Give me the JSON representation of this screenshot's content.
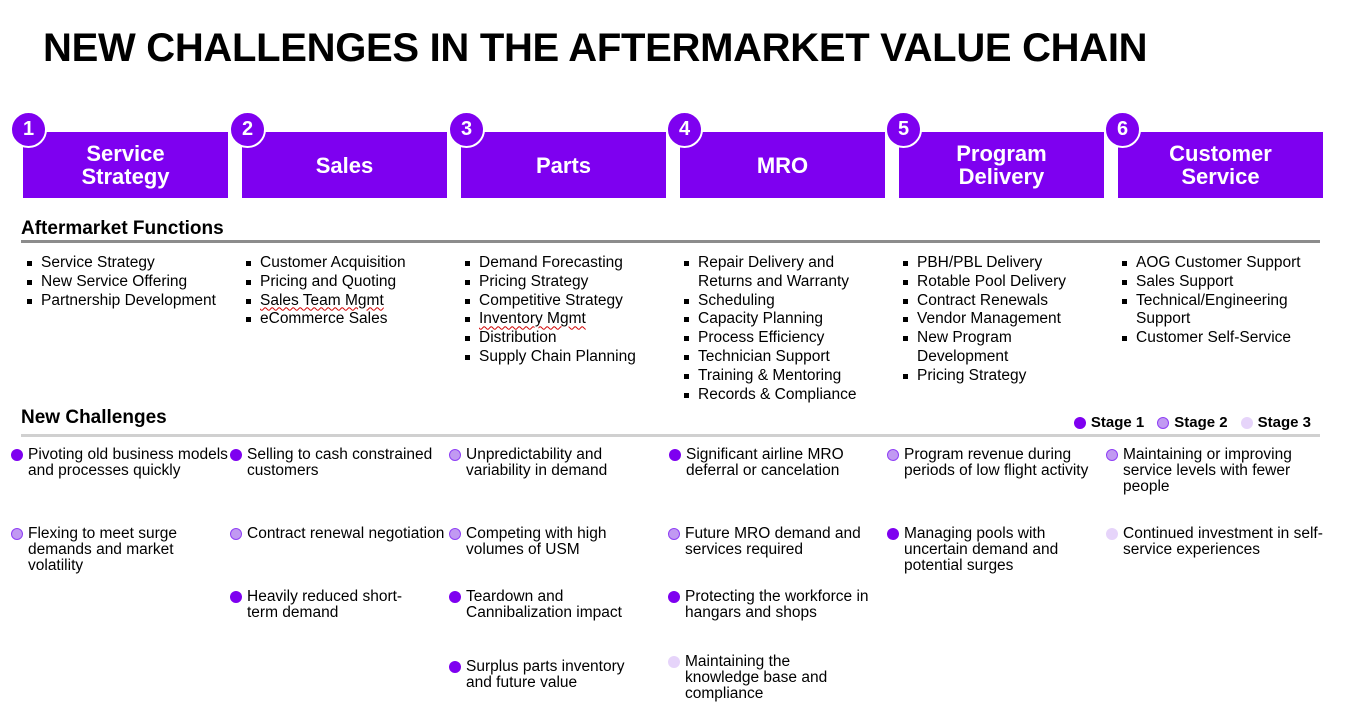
{
  "title": "NEW CHALLENGES IN THE AFTERMARKET VALUE CHAIN",
  "stages": [
    {
      "num": "1",
      "label": "Service\nStrategy"
    },
    {
      "num": "2",
      "label": "Sales"
    },
    {
      "num": "3",
      "label": "Parts"
    },
    {
      "num": "4",
      "label": "MRO"
    },
    {
      "num": "5",
      "label": "Program\nDelivery"
    },
    {
      "num": "6",
      "label": "Customer\nService"
    }
  ],
  "functions_heading": "Aftermarket Functions",
  "functions": [
    [
      "Service Strategy",
      "New Service Offering",
      "Partnership Development"
    ],
    [
      "Customer Acquisition",
      "Pricing and Quoting",
      "Sales Team Mgmt",
      "eCommerce Sales"
    ],
    [
      "Demand Forecasting",
      "Pricing Strategy",
      "Competitive Strategy",
      "Inventory Mgmt",
      "Distribution",
      "Supply Chain Planning"
    ],
    [
      "Repair Delivery and Returns and Warranty",
      "Scheduling",
      "Capacity Planning",
      "Process Efficiency",
      "Technician Support",
      "Training & Mentoring",
      "Records & Compliance"
    ],
    [
      "PBH/PBL Delivery",
      "Rotable Pool Delivery",
      "Contract Renewals",
      "Vendor Management",
      "New Program Development",
      "Pricing Strategy"
    ],
    [
      "AOG Customer Support",
      "Sales Support",
      "Technical/Engineering Support",
      "Customer Self-Service"
    ]
  ],
  "challenges_heading": "New Challenges",
  "legend": {
    "stage1": "Stage 1",
    "stage2": "Stage 2",
    "stage3": "Stage 3"
  },
  "colors": {
    "stage1": "#7e00f0",
    "stage2": "#c199f2",
    "stage3": "#e6d4fa",
    "accent": "#7e00f0"
  },
  "challenges": [
    [
      {
        "text": "Pivoting old business models and processes quickly",
        "stage": 1
      },
      {
        "text": "Flexing to meet surge demands and market volatility",
        "stage": 2
      }
    ],
    [
      {
        "text": "Selling to cash constrained customers",
        "stage": 1
      },
      {
        "text": "Contract renewal negotiation",
        "stage": 2
      },
      {
        "text": "Heavily reduced short-term demand",
        "stage": 1
      }
    ],
    [
      {
        "text": "Unpredictability and variability in demand",
        "stage": 2
      },
      {
        "text": "Competing with high volumes of USM",
        "stage": 2
      },
      {
        "text": "Teardown and Cannibalization impact",
        "stage": 1
      },
      {
        "text": "Surplus parts inventory and future value",
        "stage": 1
      }
    ],
    [
      {
        "text": "Significant airline MRO deferral or cancelation",
        "stage": 1
      },
      {
        "text": "Future MRO demand and services required",
        "stage": 2
      },
      {
        "text": "Protecting the workforce in hangars and shops",
        "stage": 1
      },
      {
        "text": "Maintaining the knowledge base and compliance",
        "stage": 3
      }
    ],
    [
      {
        "text": "Program revenue during periods of low flight activity",
        "stage": 2
      },
      {
        "text": "Managing pools with uncertain demand and potential surges",
        "stage": 1
      }
    ],
    [
      {
        "text": "Maintaining or improving service levels with fewer people",
        "stage": 2
      },
      {
        "text": "Continued investment in self-service experiences",
        "stage": 3
      }
    ]
  ]
}
